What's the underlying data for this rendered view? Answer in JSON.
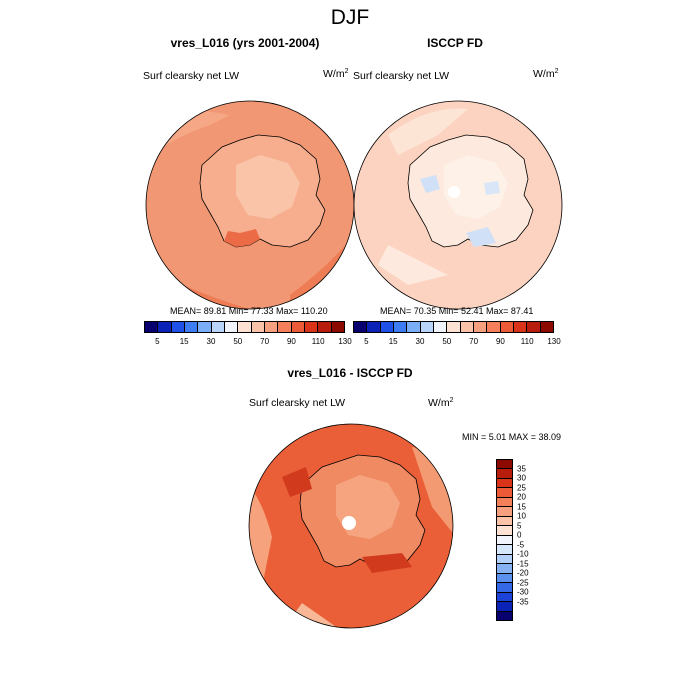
{
  "title": "DJF",
  "panels": [
    {
      "title": "vres_L016 (yrs 2001-2004)",
      "variable": "Surf clearsky net LW",
      "units_base": "W/m",
      "units_exp": "2",
      "stats": "MEAN=  89.81  Min=  77.33  Max= 110.20",
      "ocean_color": "#f29773",
      "ice_color": "#f7ae8f",
      "interior_color": "#f9c4a8"
    },
    {
      "title": "ISCCP FD",
      "variable": "Surf clearsky net LW",
      "units_base": "W/m",
      "units_exp": "2",
      "stats": "MEAN=  70.35  Min=  52.41  Max=  87.41",
      "ocean_color": "#fbd3c0",
      "ice_color": "#fde9dd",
      "interior_color": "#fdf1e8"
    },
    {
      "title": "vres_L016 - ISCCP FD",
      "variable": "Surf clearsky net LW",
      "units_base": "W/m",
      "units_exp": "2",
      "stats": "MIN =   5.01 MAX =  38.09",
      "ocean_color": "#ea5f37",
      "ice_color": "#f08a63",
      "interior_color": "#f6a47f"
    }
  ],
  "colorbar_fields": {
    "colors": [
      "#08006e",
      "#0a22b5",
      "#1f50e8",
      "#3d7cf3",
      "#7aaef7",
      "#b9d6fa",
      "#f2f4fb",
      "#fde2d3",
      "#fbc4a8",
      "#f7a07f",
      "#f37f5b",
      "#ec5a37",
      "#d9341a",
      "#b81c0c",
      "#8c0900"
    ],
    "ticks": [
      "5",
      "15",
      "30",
      "50",
      "70",
      "90",
      "110",
      "130"
    ]
  },
  "colorbar_diff": {
    "colors": [
      "#8c0900",
      "#b81c0c",
      "#d9341a",
      "#ec5a37",
      "#f37f5b",
      "#f7a07f",
      "#fbc4a8",
      "#fde2d3",
      "#f2f4fb",
      "#d6e6fb",
      "#b2d0f8",
      "#86b2f4",
      "#5b90ee",
      "#3568e6",
      "#1c42d8",
      "#0a22b5",
      "#08006e"
    ],
    "ticks": [
      "35",
      "30",
      "25",
      "20",
      "15",
      "10",
      "5",
      "0",
      "-5",
      "-10",
      "-15",
      "-20",
      "-25",
      "-30",
      "-35"
    ]
  }
}
